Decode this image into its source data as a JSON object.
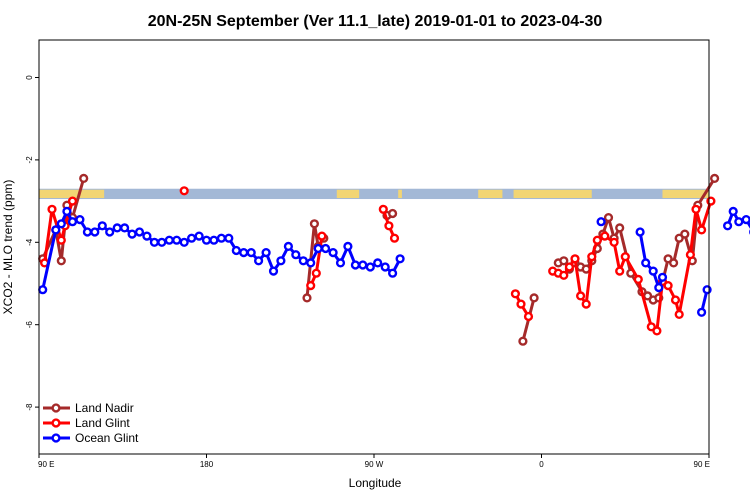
{
  "chart_data": {
    "type": "line",
    "title": "20N-25N September (Ver 11.1_late)   2019-01-01 to 2023-04-30",
    "xlabel": "Longitude",
    "ylabel": "XCO2 - MLO trend (ppm)",
    "xlim": [
      90,
      450
    ],
    "ylim": [
      -9,
      1
    ],
    "x_ticks": [
      {
        "value": 90,
        "label": "90 E"
      },
      {
        "value": 180,
        "label": "180"
      },
      {
        "value": 270,
        "label": "90 W"
      },
      {
        "value": 360,
        "label": "0"
      },
      {
        "value": 450,
        "label": "90 E"
      },
      {
        "value": 540,
        "label": "180"
      }
    ],
    "y_ticks": [
      {
        "value": 0,
        "label": "0"
      },
      {
        "value": -2,
        "label": "-2"
      },
      {
        "value": -4,
        "label": "-4"
      },
      {
        "value": -6,
        "label": "-6"
      },
      {
        "value": -8,
        "label": "-8"
      }
    ],
    "legend_position": "bottom-left",
    "colors": {
      "map_ocean": "#a3b8d6",
      "map_land": "#f2d574"
    },
    "map_strip": {
      "y_top": -2.7,
      "y_bottom": -2.95,
      "land_lon_ranges": [
        [
          90,
          125
        ],
        [
          250,
          262
        ],
        [
          283,
          285
        ],
        [
          326,
          339
        ],
        [
          345,
          387
        ],
        [
          425,
          470
        ]
      ]
    },
    "series": [
      {
        "name": "Land Nadir",
        "color": "#a52a2a",
        "segments": [
          [
            [
              92,
              -4.4
            ],
            [
              99,
              -3.7
            ],
            [
              102,
              -4.45
            ],
            [
              105,
              -3.1
            ],
            [
              108,
              -3.4
            ],
            [
              114,
              -2.45
            ]
          ],
          [
            [
              234,
              -5.35
            ],
            [
              238,
              -3.55
            ],
            [
              240,
              -4.1
            ],
            [
              243,
              -3.9
            ]
          ],
          [
            [
              277,
              -3.35
            ],
            [
              280,
              -3.3
            ]
          ],
          [
            [
              350,
              -6.4
            ],
            [
              356,
              -5.35
            ]
          ],
          [
            [
              369,
              -4.5
            ],
            [
              372,
              -4.45
            ],
            [
              375,
              -4.65
            ],
            [
              378,
              -4.5
            ],
            [
              381,
              -4.6
            ],
            [
              384,
              -4.65
            ],
            [
              387,
              -4.45
            ],
            [
              390,
              -4.15
            ],
            [
              393,
              -3.8
            ],
            [
              396,
              -3.4
            ],
            [
              399,
              -3.9
            ],
            [
              402,
              -3.65
            ],
            [
              408,
              -4.75
            ],
            [
              414,
              -5.2
            ],
            [
              417,
              -5.3
            ],
            [
              420,
              -5.4
            ],
            [
              423,
              -5.35
            ],
            [
              428,
              -4.4
            ],
            [
              431,
              -4.5
            ],
            [
              434,
              -3.9
            ],
            [
              437,
              -3.8
            ],
            [
              441,
              -4.45
            ],
            [
              444,
              -3.1
            ],
            [
              453,
              -2.45
            ]
          ]
        ]
      },
      {
        "name": "Land Glint",
        "color": "#ff0000",
        "segments": [
          [
            [
              93,
              -4.5
            ],
            [
              97,
              -3.2
            ],
            [
              102,
              -3.95
            ],
            [
              104,
              -3.6
            ],
            [
              108,
              -3.0
            ]
          ],
          [
            [
              168,
              -2.75
            ]
          ],
          [
            [
              236,
              -5.05
            ],
            [
              239,
              -4.75
            ],
            [
              242,
              -3.85
            ]
          ],
          [
            [
              275,
              -3.2
            ],
            [
              278,
              -3.6
            ],
            [
              281,
              -3.9
            ]
          ],
          [
            [
              346,
              -5.25
            ],
            [
              349,
              -5.5
            ],
            [
              353,
              -5.8
            ]
          ],
          [
            [
              366,
              -4.7
            ],
            [
              369,
              -4.75
            ],
            [
              372,
              -4.8
            ],
            [
              375,
              -4.6
            ],
            [
              378,
              -4.4
            ],
            [
              381,
              -5.3
            ],
            [
              384,
              -5.5
            ],
            [
              387,
              -4.35
            ],
            [
              390,
              -3.95
            ],
            [
              394,
              -3.85
            ],
            [
              399,
              -4.0
            ],
            [
              402,
              -4.7
            ],
            [
              405,
              -4.35
            ],
            [
              412,
              -4.9
            ],
            [
              419,
              -6.05
            ],
            [
              422,
              -6.15
            ],
            [
              425,
              -4.95
            ],
            [
              428,
              -5.05
            ],
            [
              432,
              -5.4
            ],
            [
              434,
              -5.75
            ],
            [
              440,
              -4.3
            ],
            [
              443,
              -3.2
            ],
            [
              446,
              -3.7
            ],
            [
              451,
              -3.0
            ]
          ]
        ]
      },
      {
        "name": "Ocean Glint",
        "color": "#0000ff",
        "segments": [
          [
            [
              92,
              -5.15
            ],
            [
              99,
              -3.7
            ],
            [
              102,
              -3.55
            ],
            [
              105,
              -3.25
            ],
            [
              108,
              -3.5
            ],
            [
              112,
              -3.45
            ],
            [
              116,
              -3.75
            ],
            [
              120,
              -3.75
            ],
            [
              124,
              -3.6
            ],
            [
              128,
              -3.75
            ],
            [
              132,
              -3.65
            ],
            [
              136,
              -3.65
            ],
            [
              140,
              -3.8
            ],
            [
              144,
              -3.75
            ],
            [
              148,
              -3.85
            ],
            [
              152,
              -4.0
            ],
            [
              156,
              -4.0
            ],
            [
              160,
              -3.95
            ],
            [
              164,
              -3.95
            ],
            [
              168,
              -4.0
            ],
            [
              172,
              -3.9
            ],
            [
              176,
              -3.85
            ],
            [
              180,
              -3.95
            ],
            [
              184,
              -3.95
            ],
            [
              188,
              -3.9
            ],
            [
              192,
              -3.9
            ],
            [
              196,
              -4.2
            ],
            [
              200,
              -4.25
            ],
            [
              204,
              -4.25
            ],
            [
              208,
              -4.45
            ],
            [
              212,
              -4.25
            ],
            [
              216,
              -4.7
            ],
            [
              220,
              -4.45
            ],
            [
              224,
              -4.1
            ],
            [
              228,
              -4.3
            ],
            [
              232,
              -4.45
            ],
            [
              236,
              -4.5
            ],
            [
              240,
              -4.15
            ],
            [
              244,
              -4.15
            ],
            [
              248,
              -4.25
            ],
            [
              252,
              -4.5
            ],
            [
              256,
              -4.1
            ],
            [
              260,
              -4.55
            ],
            [
              264,
              -4.55
            ],
            [
              268,
              -4.6
            ],
            [
              272,
              -4.5
            ],
            [
              276,
              -4.6
            ],
            [
              280,
              -4.75
            ],
            [
              284,
              -4.4
            ]
          ],
          [
            [
              392,
              -3.5
            ]
          ],
          [
            [
              413,
              -3.75
            ],
            [
              416,
              -4.5
            ],
            [
              420,
              -4.7
            ],
            [
              423,
              -5.1
            ],
            [
              425,
              -4.85
            ]
          ],
          [
            [
              446,
              -5.7
            ],
            [
              449,
              -5.15
            ]
          ],
          [
            [
              460,
              -3.6
            ],
            [
              463,
              -3.25
            ],
            [
              466,
              -3.5
            ],
            [
              470,
              -3.45
            ],
            [
              474,
              -3.75
            ],
            [
              478,
              -3.75
            ],
            [
              482,
              -3.65
            ]
          ]
        ]
      }
    ]
  }
}
